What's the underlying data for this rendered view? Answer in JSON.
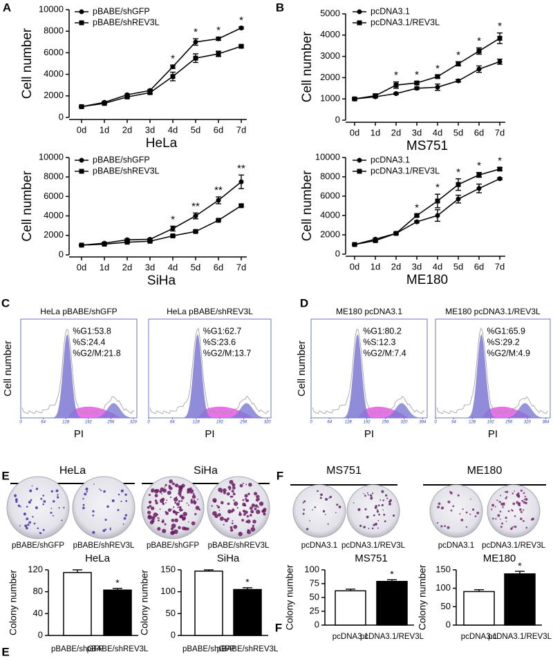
{
  "panel_labels": [
    "A",
    "B",
    "C",
    "D",
    "E",
    "F",
    "E",
    "F"
  ],
  "chart_data": [
    {
      "type": "line",
      "xlabel": "HeLa",
      "ylabel": "Cell number",
      "categories": [
        "0d",
        "1d",
        "2d",
        "3d",
        "4d",
        "5d",
        "6d",
        "7d"
      ],
      "series": [
        {
          "name": "pBABE/shGFP",
          "marker": "circle",
          "color": "#000000",
          "values": [
            1000,
            1400,
            2100,
            2500,
            4700,
            7000,
            7300,
            8300
          ],
          "errors": [
            50,
            60,
            80,
            80,
            150,
            300,
            150,
            100
          ]
        },
        {
          "name": "pBABE/shREV3L",
          "marker": "square",
          "color": "#000000",
          "values": [
            1000,
            1300,
            1900,
            2300,
            3800,
            5500,
            5900,
            6600
          ],
          "errors": [
            50,
            60,
            80,
            100,
            400,
            400,
            250,
            100
          ]
        }
      ],
      "significance": [
        null,
        null,
        null,
        null,
        "*",
        "*",
        "*",
        "*"
      ],
      "ylim": [
        0,
        10000
      ],
      "yticks": [
        0,
        2000,
        4000,
        6000,
        8000,
        10000
      ]
    },
    {
      "type": "line",
      "xlabel": "MS751",
      "ylabel": "Cell number",
      "categories": [
        "0d",
        "1d",
        "2d",
        "3d",
        "4d",
        "5d",
        "6d",
        "7d"
      ],
      "series": [
        {
          "name": "pcDNA3.1",
          "marker": "circle",
          "color": "#000000",
          "values": [
            1000,
            1100,
            1250,
            1500,
            1550,
            1850,
            2400,
            2750
          ],
          "errors": [
            40,
            50,
            40,
            60,
            150,
            60,
            150,
            120
          ]
        },
        {
          "name": "pcDNA3.1/REV3L",
          "marker": "square",
          "color": "#000000",
          "values": [
            1000,
            1150,
            1650,
            1750,
            2050,
            2650,
            3250,
            3850
          ],
          "errors": [
            40,
            80,
            150,
            60,
            60,
            100,
            150,
            250
          ]
        }
      ],
      "significance": [
        null,
        null,
        "*",
        "*",
        "*",
        "*",
        "*",
        "*"
      ],
      "ylim": [
        0,
        5000
      ],
      "yticks": [
        0,
        1000,
        2000,
        3000,
        4000,
        5000
      ]
    },
    {
      "type": "line",
      "xlabel": "SiHa",
      "ylabel": "Cell number",
      "categories": [
        "0d",
        "1d",
        "2d",
        "3d",
        "4d",
        "5d",
        "6d",
        "7d"
      ],
      "series": [
        {
          "name": "pBABE/shGFP",
          "marker": "circle",
          "color": "#000000",
          "values": [
            1000,
            1200,
            1550,
            1600,
            2700,
            4000,
            5600,
            7500
          ],
          "errors": [
            50,
            60,
            80,
            80,
            250,
            300,
            350,
            700
          ]
        },
        {
          "name": "pBABE/shREV3L",
          "marker": "square",
          "color": "#000000",
          "values": [
            1000,
            1100,
            1300,
            1400,
            1950,
            2400,
            3550,
            5050
          ],
          "errors": [
            50,
            50,
            60,
            60,
            80,
            80,
            80,
            100
          ]
        }
      ],
      "significance": [
        null,
        null,
        null,
        null,
        "*",
        "**",
        "**",
        "**"
      ],
      "ylim": [
        0,
        10000
      ],
      "yticks": [
        0,
        2000,
        4000,
        6000,
        8000,
        10000
      ]
    },
    {
      "type": "line",
      "xlabel": "ME180",
      "ylabel": "Cell number",
      "categories": [
        "0d",
        "1d",
        "2d",
        "3d",
        "4d",
        "5d",
        "6d",
        "7d"
      ],
      "series": [
        {
          "name": "pcDNA3.1",
          "marker": "circle",
          "color": "#000000",
          "values": [
            1000,
            1550,
            2150,
            3350,
            4000,
            5700,
            6800,
            7800
          ],
          "errors": [
            50,
            80,
            80,
            100,
            600,
            400,
            450,
            100
          ]
        },
        {
          "name": "pcDNA3.1/REV3L",
          "marker": "square",
          "color": "#000000",
          "values": [
            1000,
            1400,
            2150,
            4000,
            5500,
            7200,
            8200,
            8800
          ],
          "errors": [
            50,
            60,
            80,
            100,
            700,
            600,
            250,
            150
          ]
        }
      ],
      "significance": [
        null,
        null,
        null,
        "*",
        "*",
        "*",
        "*",
        "*"
      ],
      "ylim": [
        0,
        10000
      ],
      "yticks": [
        0,
        2000,
        4000,
        6000,
        8000,
        10000
      ]
    },
    {
      "type": "flow",
      "title": "HeLa pBABE/shGFP",
      "ylabel": "Cell number",
      "xlabel": "PI",
      "stats": [
        "%G1:53.8",
        "%S:24.4",
        "%G2/M:21.8"
      ],
      "xlim": [
        0,
        330
      ],
      "xticks": [
        0,
        64,
        128,
        192,
        256,
        320
      ]
    },
    {
      "type": "flow",
      "title": "HeLa pBABE/shREV3L",
      "xlabel": "PI",
      "stats": [
        "%G1:62.7",
        "%S:23.6",
        "%G2/M:13.7"
      ],
      "xlim": [
        0,
        330
      ],
      "xticks": [
        0,
        64,
        128,
        192,
        256,
        320
      ]
    },
    {
      "type": "flow",
      "title": "ME180 pcDNA3.1",
      "ylabel": "Cell number",
      "xlabel": "PI",
      "stats": [
        "%G1:80.2",
        "%S:12.3",
        "%G2/M:7.4"
      ],
      "xlim": [
        0,
        400
      ],
      "xticks": [
        0,
        64,
        128,
        192,
        256,
        320,
        384
      ]
    },
    {
      "type": "flow",
      "title": "ME180 pcDNA3.1/REV3L",
      "xlabel": "PI",
      "stats": [
        "%G1:65.9",
        "%S:29.2",
        "%G2/M:4.9"
      ],
      "xlim": [
        0,
        400
      ],
      "xticks": [
        0,
        64,
        128,
        192,
        256,
        320,
        384
      ]
    },
    {
      "type": "bar",
      "title": "HeLa",
      "ylabel": "Colony number",
      "categories": [
        "pBABE/shGFP",
        "pBABE/shREV3L"
      ],
      "values": [
        115,
        83
      ],
      "errors": [
        5,
        3
      ],
      "colors": [
        "#ffffff",
        "#000000"
      ],
      "significance": [
        null,
        "*"
      ],
      "ylim": [
        0,
        120
      ],
      "yticks": [
        0,
        40,
        80,
        120
      ]
    },
    {
      "type": "bar",
      "title": "SiHa",
      "ylabel": "Colony number",
      "categories": [
        "pBABE/shGFP",
        "pBABE/shREV3L"
      ],
      "values": [
        147,
        105
      ],
      "errors": [
        3,
        4
      ],
      "colors": [
        "#ffffff",
        "#000000"
      ],
      "significance": [
        null,
        "*"
      ],
      "ylim": [
        0,
        150
      ],
      "yticks": [
        0,
        50,
        100,
        150
      ]
    },
    {
      "type": "bar",
      "title": "MS751",
      "ylabel": "Colony number",
      "categories": [
        "pcDNA3.1",
        "pcDNA3.1/REV3L"
      ],
      "values": [
        62,
        79
      ],
      "errors": [
        3,
        3
      ],
      "colors": [
        "#ffffff",
        "#000000"
      ],
      "significance": [
        null,
        "*"
      ],
      "ylim": [
        0,
        100
      ],
      "yticks": [
        0,
        25,
        50,
        75,
        100
      ]
    },
    {
      "type": "bar",
      "title": "ME180",
      "ylabel": "Colony number",
      "categories": [
        "pcDNA3.1",
        "pcDNA3.1/REV3L"
      ],
      "values": [
        91,
        139
      ],
      "errors": [
        5,
        7
      ],
      "colors": [
        "#ffffff",
        "#000000"
      ],
      "significance": [
        null,
        "*"
      ],
      "ylim": [
        0,
        150
      ],
      "yticks": [
        0,
        50,
        100,
        150
      ]
    }
  ],
  "colony_groups": [
    {
      "header": "HeLa",
      "plates": [
        "pBABE/shGFP",
        "pBABE/shREV3L"
      ]
    },
    {
      "header": "SiHa",
      "plates": [
        "pBABE/shGFP",
        "pBABE/shREV3L"
      ]
    },
    {
      "header": "MS751",
      "plates": [
        "pcDNA3.1",
        "pcDNA3.1/REV3L"
      ]
    },
    {
      "header": "ME180",
      "plates": [
        "pcDNA3.1",
        "pcDNA3.1/REV3L"
      ]
    }
  ]
}
